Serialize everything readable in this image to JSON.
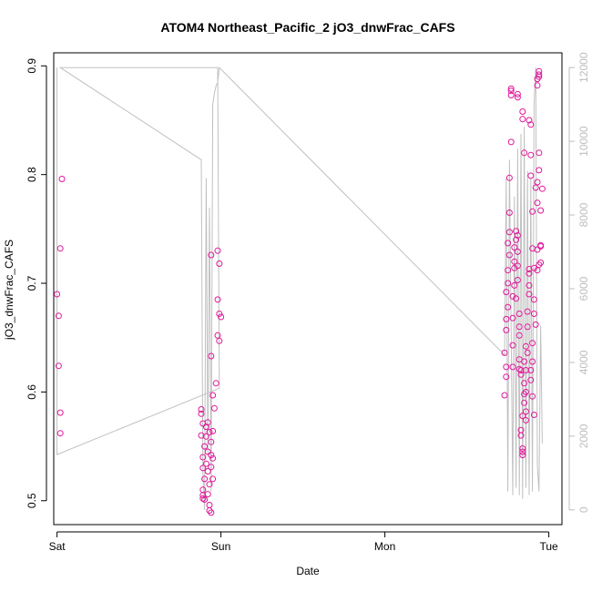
{
  "chart_data": {
    "type": "scatter",
    "title": "ATOM4 Northeast_Pacific_2 jO3_dnwFrac_CAFS",
    "xlabel": "Date",
    "ylabel": "jO3_dnwFrac_CAFS",
    "x_unit": "days since Sat 00:00",
    "xlim": [
      -0.02,
      3.08
    ],
    "ylim": [
      0.478,
      0.912
    ],
    "x_ticks": [
      {
        "value": 0,
        "label": "Sat"
      },
      {
        "value": 1,
        "label": "Sun"
      },
      {
        "value": 2,
        "label": "Mon"
      },
      {
        "value": 3,
        "label": "Tue"
      }
    ],
    "y_ticks": [
      0.5,
      0.6,
      0.7,
      0.8,
      0.9
    ],
    "y2_ticks": [
      0,
      2000,
      4000,
      6000,
      8000,
      10000,
      12000
    ],
    "y2lim": [
      -400,
      12400
    ],
    "grid": false,
    "colors": {
      "points": "#e0189a",
      "secondary_line": "#c0c0c0",
      "secondary_axis": "#bdbdbd"
    },
    "series": [
      {
        "role": "primary-scatter",
        "axis": "left",
        "points": [
          [
            0.02,
            0.562
          ],
          [
            0.02,
            0.581
          ],
          [
            0.01,
            0.624
          ],
          [
            0.01,
            0.67
          ],
          [
            0.0,
            0.69
          ],
          [
            0.02,
            0.732
          ],
          [
            0.03,
            0.796
          ],
          [
            0.88,
            0.584
          ],
          [
            0.88,
            0.58
          ],
          [
            0.89,
            0.571
          ],
          [
            0.88,
            0.56
          ],
          [
            0.9,
            0.55
          ],
          [
            0.89,
            0.54
          ],
          [
            0.89,
            0.53
          ],
          [
            0.9,
            0.52
          ],
          [
            0.89,
            0.51
          ],
          [
            0.89,
            0.505
          ],
          [
            0.89,
            0.502
          ],
          [
            0.9,
            0.501
          ],
          [
            0.91,
            0.568
          ],
          [
            0.91,
            0.559
          ],
          [
            0.92,
            0.545
          ],
          [
            0.91,
            0.534
          ],
          [
            0.92,
            0.527
          ],
          [
            0.93,
            0.515
          ],
          [
            0.92,
            0.506
          ],
          [
            0.93,
            0.496
          ],
          [
            0.93,
            0.491
          ],
          [
            0.94,
            0.489
          ],
          [
            0.92,
            0.572
          ],
          [
            0.93,
            0.563
          ],
          [
            0.94,
            0.554
          ],
          [
            0.94,
            0.542
          ],
          [
            0.95,
            0.539
          ],
          [
            0.94,
            0.531
          ],
          [
            0.95,
            0.52
          ],
          [
            0.95,
            0.564
          ],
          [
            0.96,
            0.585
          ],
          [
            0.95,
            0.597
          ],
          [
            0.94,
            0.633
          ],
          [
            0.94,
            0.726
          ],
          [
            0.97,
            0.608
          ],
          [
            0.98,
            0.652
          ],
          [
            0.98,
            0.685
          ],
          [
            0.99,
            0.647
          ],
          [
            0.99,
            0.672
          ],
          [
            1.0,
            0.669
          ],
          [
            0.99,
            0.718
          ],
          [
            0.98,
            0.73
          ],
          [
            2.73,
            0.597
          ],
          [
            2.73,
            0.636
          ],
          [
            2.74,
            0.623
          ],
          [
            2.74,
            0.614
          ],
          [
            2.74,
            0.657
          ],
          [
            2.74,
            0.667
          ],
          [
            2.75,
            0.678
          ],
          [
            2.74,
            0.692
          ],
          [
            2.75,
            0.7
          ],
          [
            2.75,
            0.712
          ],
          [
            2.76,
            0.726
          ],
          [
            2.75,
            0.737
          ],
          [
            2.76,
            0.747
          ],
          [
            2.76,
            0.765
          ],
          [
            2.76,
            0.797
          ],
          [
            2.77,
            0.83
          ],
          [
            2.77,
            0.873
          ],
          [
            2.77,
            0.877
          ],
          [
            2.77,
            0.879
          ],
          [
            2.78,
            0.688
          ],
          [
            2.78,
            0.668
          ],
          [
            2.78,
            0.643
          ],
          [
            2.78,
            0.623
          ],
          [
            2.79,
            0.698
          ],
          [
            2.79,
            0.714
          ],
          [
            2.79,
            0.72
          ],
          [
            2.79,
            0.733
          ],
          [
            2.8,
            0.748
          ],
          [
            2.8,
            0.74
          ],
          [
            2.81,
            0.744
          ],
          [
            2.81,
            0.729
          ],
          [
            2.81,
            0.716
          ],
          [
            2.81,
            0.703
          ],
          [
            2.8,
            0.686
          ],
          [
            2.81,
            0.871
          ],
          [
            2.81,
            0.874
          ],
          [
            2.82,
            0.652
          ],
          [
            2.82,
            0.66
          ],
          [
            2.82,
            0.672
          ],
          [
            2.82,
            0.63
          ],
          [
            2.82,
            0.621
          ],
          [
            2.83,
            0.616
          ],
          [
            2.83,
            0.62
          ],
          [
            2.83,
            0.565
          ],
          [
            2.83,
            0.56
          ],
          [
            2.84,
            0.548
          ],
          [
            2.84,
            0.542
          ],
          [
            2.84,
            0.545
          ],
          [
            2.84,
            0.578
          ],
          [
            2.85,
            0.59
          ],
          [
            2.85,
            0.598
          ],
          [
            2.85,
            0.608
          ],
          [
            2.85,
            0.628
          ],
          [
            2.86,
            0.642
          ],
          [
            2.84,
            0.858
          ],
          [
            2.84,
            0.851
          ],
          [
            2.85,
            0.82
          ],
          [
            2.86,
            0.574
          ],
          [
            2.86,
            0.582
          ],
          [
            2.86,
            0.6
          ],
          [
            2.86,
            0.62
          ],
          [
            2.87,
            0.636
          ],
          [
            2.87,
            0.66
          ],
          [
            2.87,
            0.674
          ],
          [
            2.88,
            0.69
          ],
          [
            2.88,
            0.709
          ],
          [
            2.88,
            0.713
          ],
          [
            2.88,
            0.698
          ],
          [
            2.88,
            0.85
          ],
          [
            2.89,
            0.846
          ],
          [
            2.89,
            0.818
          ],
          [
            2.89,
            0.799
          ],
          [
            2.9,
            0.766
          ],
          [
            2.9,
            0.732
          ],
          [
            2.91,
            0.714
          ],
          [
            2.91,
            0.685
          ],
          [
            2.91,
            0.672
          ],
          [
            2.92,
            0.662
          ],
          [
            2.9,
            0.645
          ],
          [
            2.9,
            0.628
          ],
          [
            2.89,
            0.62
          ],
          [
            2.89,
            0.611
          ],
          [
            2.9,
            0.596
          ],
          [
            2.91,
            0.579
          ],
          [
            2.92,
            0.788
          ],
          [
            2.93,
            0.774
          ],
          [
            2.93,
            0.793
          ],
          [
            2.94,
            0.82
          ],
          [
            2.94,
            0.804
          ],
          [
            2.93,
            0.712
          ],
          [
            2.93,
            0.731
          ],
          [
            2.95,
            0.735
          ],
          [
            2.95,
            0.734
          ],
          [
            2.95,
            0.719
          ],
          [
            2.94,
            0.717
          ],
          [
            2.96,
            0.787
          ],
          [
            2.95,
            0.767
          ],
          [
            2.93,
            0.882
          ],
          [
            2.93,
            0.888
          ],
          [
            2.94,
            0.892
          ],
          [
            2.94,
            0.895
          ],
          [
            2.94,
            0.89
          ]
        ]
      },
      {
        "role": "secondary-line",
        "axis": "right",
        "points": [
          [
            0.0,
            12000
          ],
          [
            0.0,
            1500
          ],
          [
            0.99,
            3300
          ],
          [
            0.98,
            12000
          ],
          [
            0.02,
            12000
          ],
          [
            0.88,
            9500
          ],
          [
            0.89,
            1000
          ],
          [
            0.9,
            0
          ],
          [
            0.91,
            9000
          ],
          [
            0.92,
            1500
          ],
          [
            0.93,
            8200
          ],
          [
            0.94,
            500
          ],
          [
            0.95,
            11000
          ],
          [
            0.96,
            11300
          ],
          [
            0.97,
            11500
          ],
          [
            0.98,
            11600
          ],
          [
            0.99,
            12000
          ],
          [
            2.73,
            4200
          ],
          [
            2.74,
            9000
          ],
          [
            2.75,
            500
          ],
          [
            2.76,
            9500
          ],
          [
            2.78,
            400
          ],
          [
            2.79,
            8500
          ],
          [
            2.8,
            600
          ],
          [
            2.81,
            9800
          ],
          [
            2.82,
            400
          ],
          [
            2.83,
            10200
          ],
          [
            2.84,
            300
          ],
          [
            2.85,
            10400
          ],
          [
            2.86,
            600
          ],
          [
            2.87,
            9200
          ],
          [
            2.88,
            400
          ],
          [
            2.89,
            9000
          ],
          [
            2.9,
            500
          ],
          [
            2.91,
            11000
          ],
          [
            2.92,
            12000
          ],
          [
            2.93,
            1200
          ],
          [
            2.94,
            500
          ],
          [
            2.95,
            5000
          ],
          [
            2.96,
            1800
          ]
        ]
      }
    ]
  }
}
